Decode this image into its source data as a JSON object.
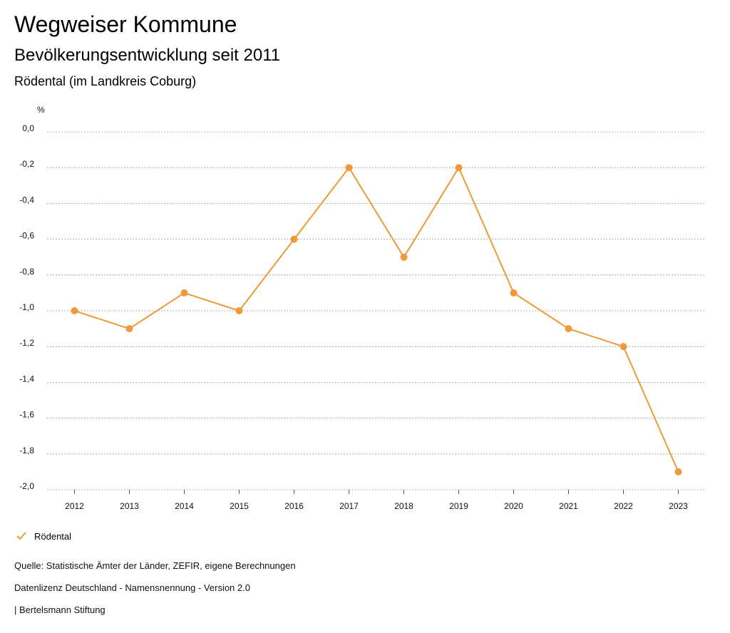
{
  "header": {
    "title": "Wegweiser Kommune",
    "subtitle": "Bevölkerungsentwicklung seit 2011",
    "region": "Rödental (im Landkreis Coburg)"
  },
  "chart_data": {
    "type": "line",
    "ylabel": "%",
    "xlabel": "",
    "ylim": [
      -2.0,
      0.0
    ],
    "grid": true,
    "y_ticks": [
      "0,0",
      "-0,2",
      "-0,4",
      "-0,6",
      "-0,8",
      "-1,0",
      "-1,2",
      "-1,4",
      "-1,6",
      "-1,8",
      "-2,0"
    ],
    "y_tick_values": [
      0.0,
      -0.2,
      -0.4,
      -0.6,
      -0.8,
      -1.0,
      -1.2,
      -1.4,
      -1.6,
      -1.8,
      -2.0
    ],
    "categories": [
      "2012",
      "2013",
      "2014",
      "2015",
      "2016",
      "2017",
      "2018",
      "2019",
      "2020",
      "2021",
      "2022",
      "2023"
    ],
    "series": [
      {
        "name": "Rödental",
        "color": "#ee9a3a",
        "values": [
          -1.0,
          -1.1,
          -0.9,
          -1.0,
          -0.6,
          -0.2,
          -0.7,
          -0.2,
          -0.9,
          -1.1,
          -1.2,
          -1.9
        ]
      }
    ],
    "legend": "bottom-left"
  },
  "legend": {
    "label": "Rödental"
  },
  "footer": {
    "source": "Quelle: Statistische Ämter der Länder, ZEFIR, eigene Berechnungen",
    "license": "Datenlizenz Deutschland - Namensnennung - Version 2.0",
    "publisher": "| Bertelsmann Stiftung"
  }
}
